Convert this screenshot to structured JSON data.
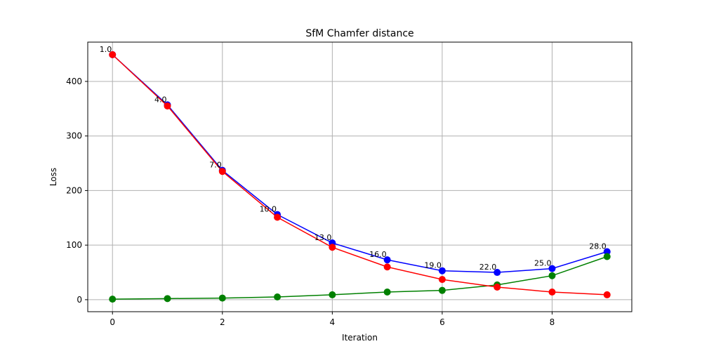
{
  "chart_data": {
    "type": "line",
    "title": "SfM Chamfer distance",
    "xlabel": "Iteration",
    "ylabel": "Loss",
    "xlim": [
      -0.45,
      9.45
    ],
    "ylim": [
      -22,
      472
    ],
    "grid": true,
    "x_ticks": [
      "0",
      "2",
      "4",
      "6",
      "8"
    ],
    "y_ticks": [
      "0",
      "100",
      "200",
      "300",
      "400"
    ],
    "x": [
      0,
      1,
      2,
      3,
      4,
      5,
      6,
      7,
      8,
      9
    ],
    "series": [
      {
        "color": "#0000ff",
        "values": [
          449,
          357,
          237,
          156,
          104,
          73,
          53,
          50,
          57,
          88
        ]
      },
      {
        "color": "#008000",
        "values": [
          1,
          2,
          3,
          5,
          9,
          14,
          17,
          27,
          44,
          79
        ]
      },
      {
        "color": "#ff0000",
        "values": [
          449,
          355,
          235,
          151,
          96,
          60,
          37,
          23,
          14,
          9
        ]
      }
    ],
    "point_labels": [
      "1.0",
      "4.0",
      "7.0",
      "10.0",
      "13.0",
      "16.0",
      "19.0",
      "22.0",
      "25.0",
      "28.0"
    ]
  }
}
